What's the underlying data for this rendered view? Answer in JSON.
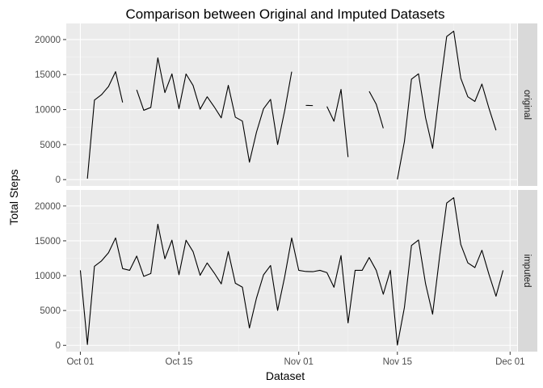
{
  "chart_data": {
    "type": "line",
    "title": "Comparison between Original and Imputed Datasets",
    "xlabel": "Dataset",
    "ylabel": "Total Steps",
    "x_start": "2012-10-01",
    "x_ticks": [
      "Oct 01",
      "Oct 15",
      "Nov 01",
      "Nov 15",
      "Dec 01"
    ],
    "x_tick_dates": [
      "2012-10-01",
      "2012-10-15",
      "2012-11-01",
      "2012-11-15",
      "2012-12-01"
    ],
    "xlim": [
      "2012-09-29",
      "2012-12-02"
    ],
    "y_ticks": [
      0,
      5000,
      10000,
      15000,
      20000
    ],
    "ylim": [
      -900,
      22300
    ],
    "grid": true,
    "panels": [
      {
        "strip_label": "original",
        "values": [
          null,
          126,
          11352,
          12116,
          13294,
          15420,
          11015,
          null,
          12811,
          9900,
          10304,
          17382,
          12426,
          15098,
          10139,
          15084,
          13452,
          10056,
          11829,
          10395,
          8821,
          13460,
          8918,
          8355,
          2492,
          6778,
          10119,
          11458,
          5018,
          9819,
          15414,
          null,
          10600,
          10571,
          null,
          10439,
          8334,
          12883,
          3219,
          null,
          null,
          12608,
          10765,
          7336,
          null,
          41,
          5441,
          14339,
          15110,
          8841,
          4472,
          12787,
          20427,
          21194,
          14478,
          11834,
          11162,
          13646,
          10183,
          7047,
          null
        ]
      },
      {
        "strip_label": "imputed",
        "values": [
          10766,
          126,
          11352,
          12116,
          13294,
          15420,
          11015,
          10766,
          12811,
          9900,
          10304,
          17382,
          12426,
          15098,
          10139,
          15084,
          13452,
          10056,
          11829,
          10395,
          8821,
          13460,
          8918,
          8355,
          2492,
          6778,
          10119,
          11458,
          5018,
          9819,
          15414,
          10766,
          10600,
          10571,
          10766,
          10439,
          8334,
          12883,
          3219,
          10766,
          10766,
          12608,
          10765,
          7336,
          10766,
          41,
          5441,
          14339,
          15110,
          8841,
          4472,
          12787,
          20427,
          21194,
          14478,
          11834,
          11162,
          13646,
          10183,
          7047,
          10766
        ]
      }
    ]
  }
}
